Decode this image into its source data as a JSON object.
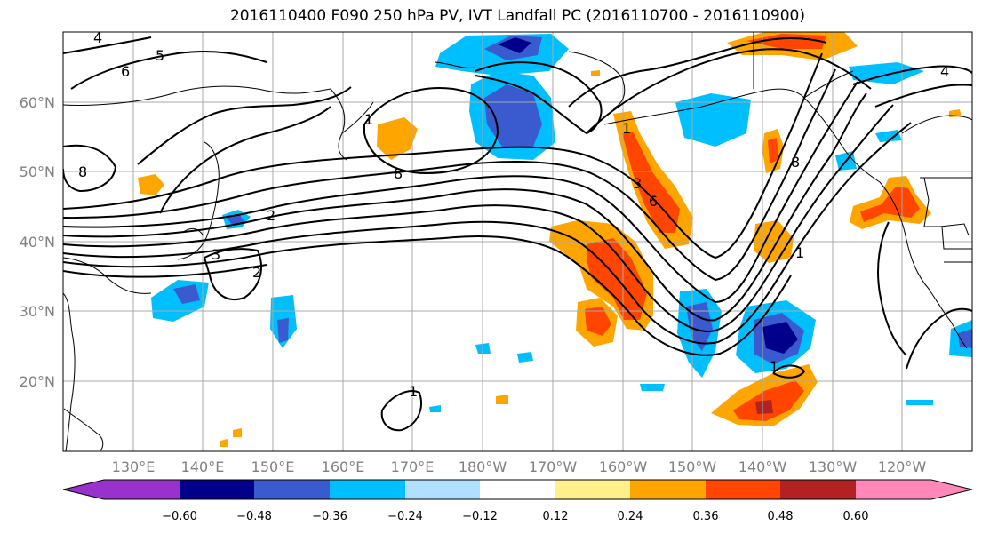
{
  "title": "2016110400 F090 250 hPa PV, IVT Landfall PC (2016110700 - 2016110900)",
  "lat_labels": [
    "60°N",
    "50°N",
    "40°N",
    "30°N",
    "20°N"
  ],
  "lon_labels": [
    "130°E",
    "140°E",
    "150°E",
    "160°E",
    "170°E",
    "180°W",
    "170°W",
    "160°W",
    "150°W",
    "140°W",
    "130°W",
    "120°W"
  ],
  "contour_labels": [
    "4",
    "5",
    "6",
    "8",
    "1",
    "8",
    "2",
    "3",
    "2",
    "1",
    "3",
    "6",
    "8",
    "1",
    "4",
    "1",
    "1"
  ],
  "colorbar": {
    "colors": [
      "#9932cc",
      "#00008b",
      "#3a5bd0",
      "#00bfff",
      "#b0e0ff",
      "#ffffff",
      "#fff08c",
      "#ffa500",
      "#ff4500",
      "#b22222",
      "#ff88b8"
    ],
    "tick_labels": [
      "−0.60",
      "−0.48",
      "−0.36",
      "−0.24",
      "−0.12",
      "0.12",
      "0.24",
      "0.36",
      "0.48",
      "0.60"
    ]
  }
}
